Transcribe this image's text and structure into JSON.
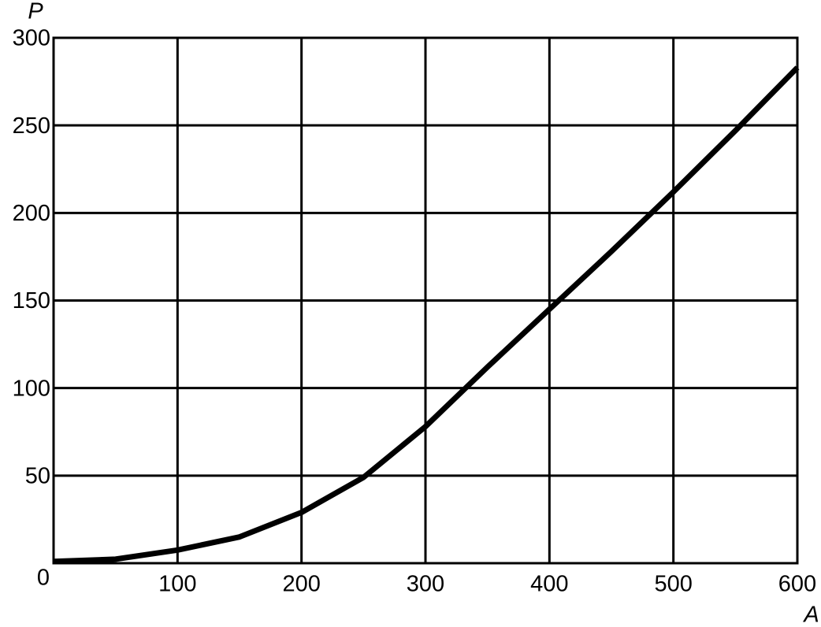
{
  "chart_data": {
    "type": "line",
    "xlabel": "A",
    "ylabel": "P",
    "x": [
      0,
      50,
      100,
      150,
      200,
      250,
      300,
      350,
      400,
      450,
      500,
      550,
      600
    ],
    "series": [
      {
        "color": "#000000",
        "values": [
          1,
          2.3,
          7.5,
          15,
          29,
          49,
          78,
          112,
          145,
          178,
          212,
          247,
          283
        ]
      }
    ],
    "xlim": [
      0,
      600
    ],
    "ylim": [
      0,
      300
    ],
    "xticks": [
      0,
      100,
      200,
      300,
      400,
      500,
      600
    ],
    "yticks": [
      50,
      100,
      150,
      200,
      250,
      300
    ],
    "grid": true
  }
}
